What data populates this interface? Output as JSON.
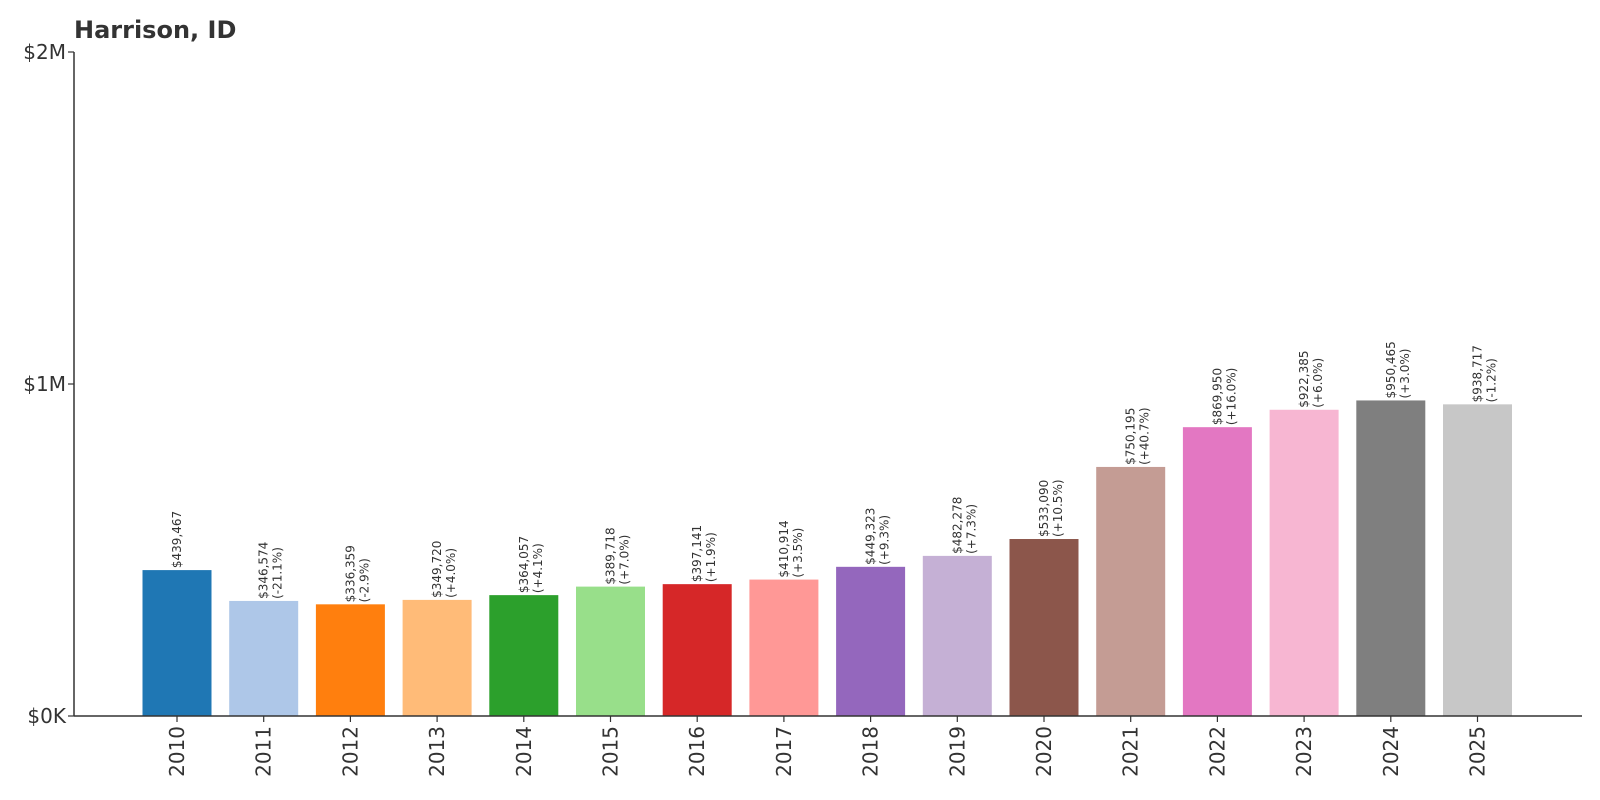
{
  "chart_data": {
    "type": "bar",
    "title": "Harrison, ID",
    "xlabel": "",
    "ylabel": "",
    "ylim": [
      0,
      2000000
    ],
    "yticks": [
      {
        "value": 0,
        "label": "$0K"
      },
      {
        "value": 1000000,
        "label": "$1M"
      },
      {
        "value": 2000000,
        "label": "$2M"
      }
    ],
    "grid": false,
    "legend": "none",
    "categories": [
      "2010",
      "2011",
      "2012",
      "2013",
      "2014",
      "2015",
      "2016",
      "2017",
      "2018",
      "2019",
      "2020",
      "2021",
      "2022",
      "2023",
      "2024",
      "2025"
    ],
    "values": [
      439467,
      346574,
      336359,
      349720,
      364057,
      389718,
      397141,
      410914,
      449323,
      482278,
      533090,
      750195,
      869950,
      922385,
      950465,
      938717
    ],
    "value_labels": [
      "$439,467",
      "$346,574",
      "$336,359",
      "$349,720",
      "$364,057",
      "$389,718",
      "$397,141",
      "$410,914",
      "$449,323",
      "$482,278",
      "$533,090",
      "$750,195",
      "$869,950",
      "$922,385",
      "$950,465",
      "$938,717"
    ],
    "change_labels": [
      "",
      "(-21.1%)",
      "(-2.9%)",
      "(+4.0%)",
      "(+4.1%)",
      "(+7.0%)",
      "(+1.9%)",
      "(+3.5%)",
      "(+9.3%)",
      "(+7.3%)",
      "(+10.5%)",
      "(+40.7%)",
      "(+16.0%)",
      "(+6.0%)",
      "(+3.0%)",
      "(-1.2%)"
    ],
    "colors": [
      "#1f77b4",
      "#aec7e8",
      "#ff7f0e",
      "#ffbb78",
      "#2ca02c",
      "#98df8a",
      "#d62728",
      "#ff9896",
      "#9467bd",
      "#c5b0d5",
      "#8c564b",
      "#c49c94",
      "#e377c2",
      "#f7b6d2",
      "#7f7f7f",
      "#c7c7c7"
    ]
  }
}
